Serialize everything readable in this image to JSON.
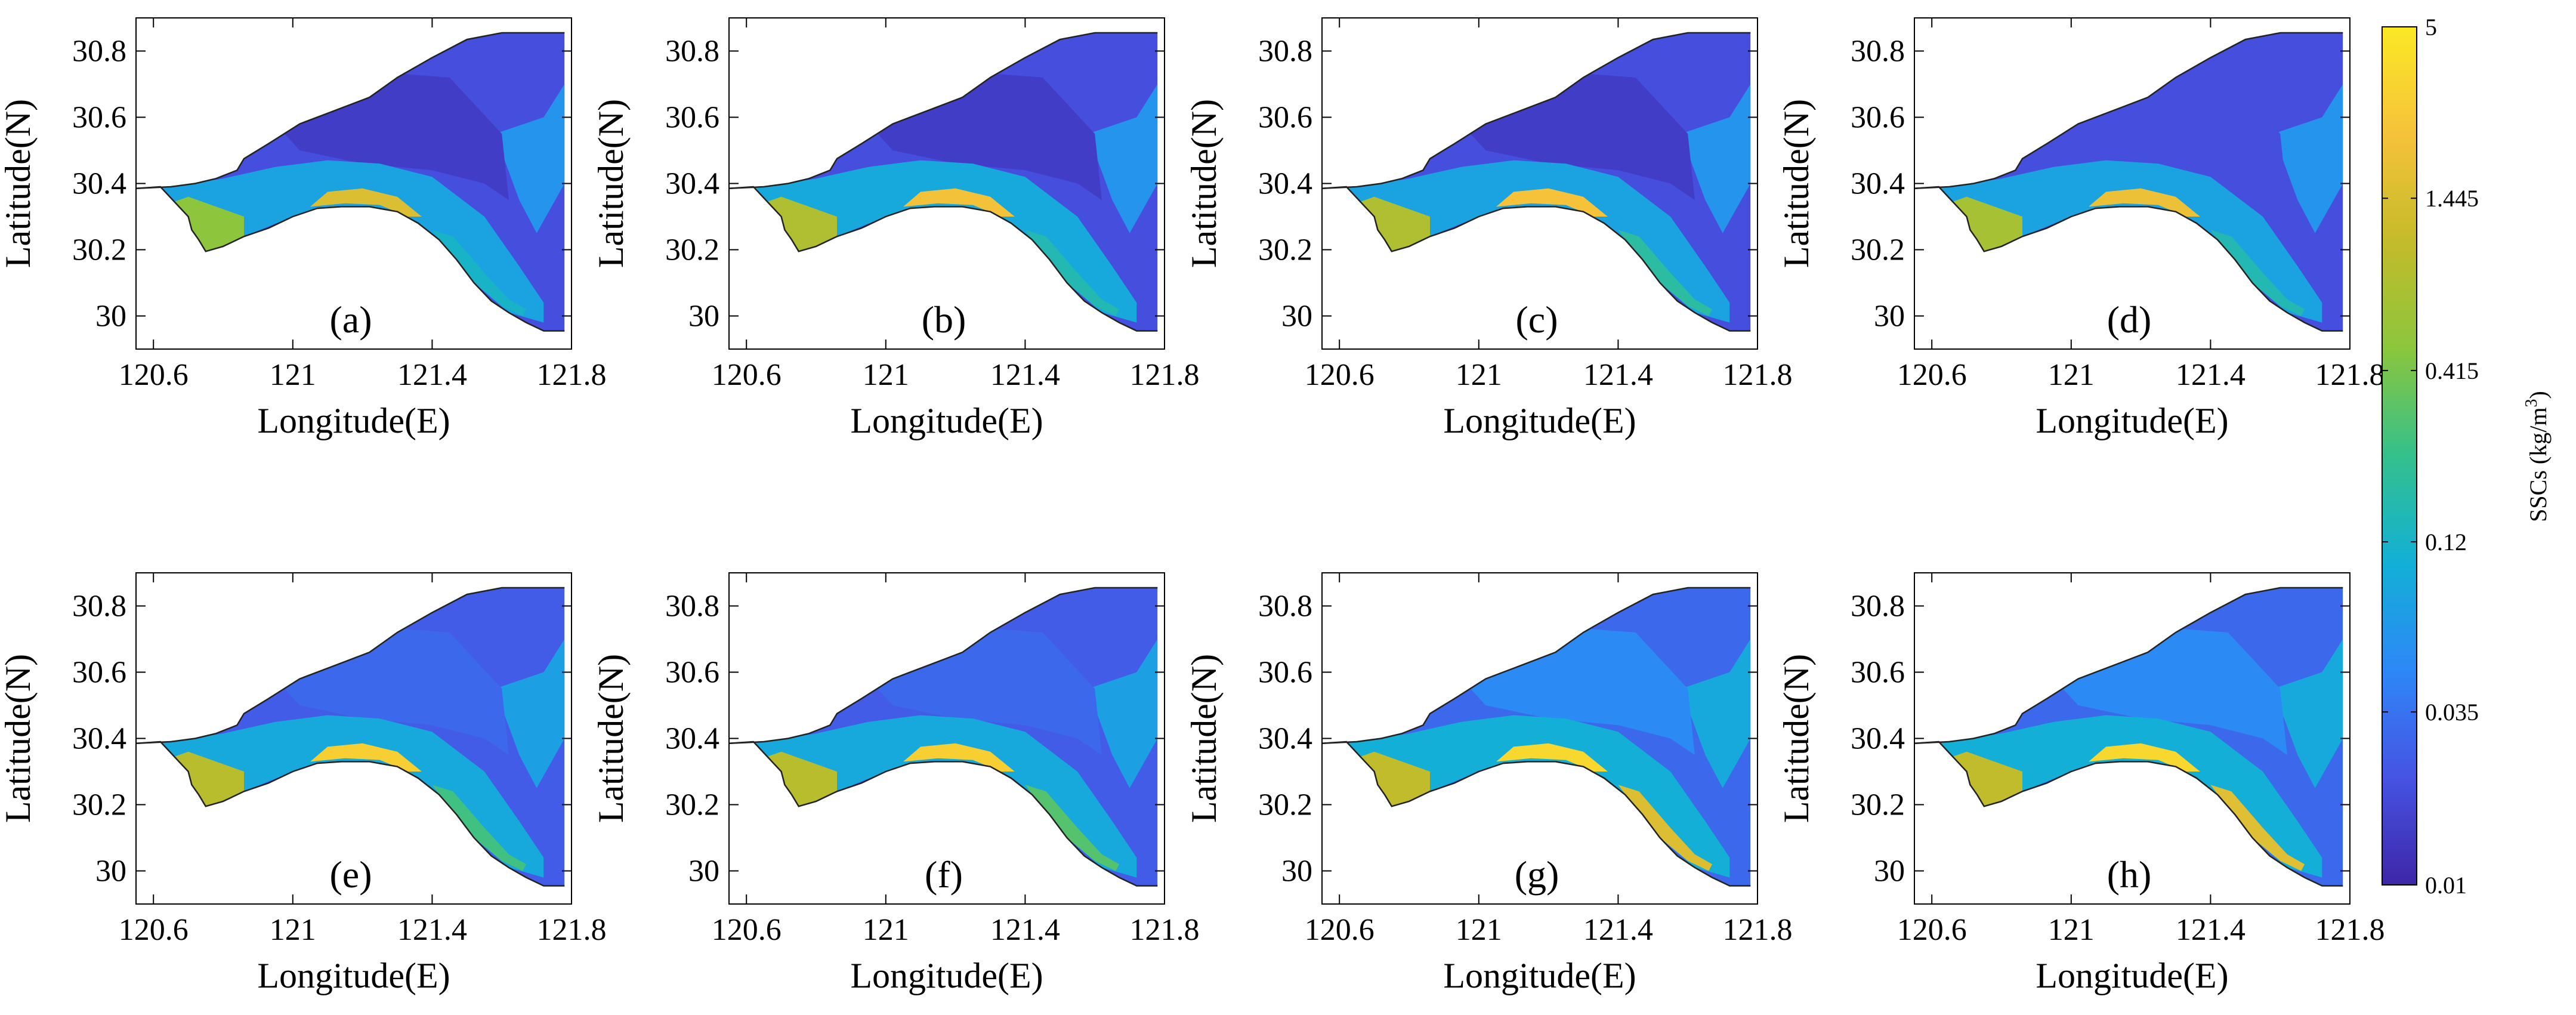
{
  "chart_data": {
    "type": "heatmap",
    "title": "",
    "shared_xlabel": "Longitude(E)",
    "shared_ylabel": "Latitude(N)",
    "xlim": [
      120.55,
      121.8
    ],
    "ylim": [
      29.9,
      30.9
    ],
    "xticks": [
      120.6,
      121,
      121.4,
      121.8
    ],
    "xtick_labels": [
      "120.6",
      "121",
      "121.4",
      "121.8"
    ],
    "yticks": [
      30,
      30.2,
      30.4,
      30.6,
      30.8
    ],
    "ytick_labels": [
      "30",
      "30.2",
      "30.4",
      "30.6",
      "30.8"
    ],
    "colorbar": {
      "label_main": "SSCs (kg/m",
      "label_sup": "3",
      "label_end": ")",
      "scale": "log",
      "ticks": [
        0.01,
        0.035,
        0.12,
        0.415,
        1.445,
        5
      ],
      "tick_labels": [
        "0.01",
        "0.035",
        "0.12",
        "0.415",
        "1.445",
        "5"
      ],
      "colors": [
        "#3e26a8",
        "#4653e3",
        "#2e87f7",
        "#12b0d6",
        "#34c08c",
        "#8bc63d",
        "#c4bb2a",
        "#f6c23a",
        "#fae825"
      ]
    },
    "panels": [
      {
        "label": "(a)",
        "background_ssc": 0.02,
        "bay_ssc": 0.08,
        "southwest_ssc": 0.5,
        "band_ssc": 1.5,
        "southeast_ssc": 0.12,
        "channel_ssc": 0.015
      },
      {
        "label": "(b)",
        "background_ssc": 0.02,
        "bay_ssc": 0.09,
        "southwest_ssc": 0.8,
        "band_ssc": 2.2,
        "southeast_ssc": 0.15,
        "channel_ssc": 0.015
      },
      {
        "label": "(c)",
        "background_ssc": 0.02,
        "bay_ssc": 0.08,
        "southwest_ssc": 0.8,
        "band_ssc": 2.3,
        "southeast_ssc": 0.18,
        "channel_ssc": 0.015
      },
      {
        "label": "(d)",
        "background_ssc": 0.02,
        "bay_ssc": 0.08,
        "southwest_ssc": 0.7,
        "band_ssc": 2.0,
        "southeast_ssc": 0.15,
        "channel_ssc": 0.02
      },
      {
        "label": "(e)",
        "background_ssc": 0.025,
        "bay_ssc": 0.09,
        "southwest_ssc": 0.9,
        "band_ssc": 3.0,
        "southeast_ssc": 0.25,
        "channel_ssc": 0.03
      },
      {
        "label": "(f)",
        "background_ssc": 0.025,
        "bay_ssc": 0.09,
        "southwest_ssc": 0.9,
        "band_ssc": 3.0,
        "southeast_ssc": 0.3,
        "channel_ssc": 0.03
      },
      {
        "label": "(g)",
        "background_ssc": 0.03,
        "bay_ssc": 0.1,
        "southwest_ssc": 1.0,
        "band_ssc": 3.5,
        "southeast_ssc": 1.5,
        "channel_ssc": 0.05
      },
      {
        "label": "(h)",
        "background_ssc": 0.03,
        "bay_ssc": 0.1,
        "southwest_ssc": 1.0,
        "band_ssc": 3.5,
        "southeast_ssc": 1.6,
        "channel_ssc": 0.05
      }
    ]
  }
}
